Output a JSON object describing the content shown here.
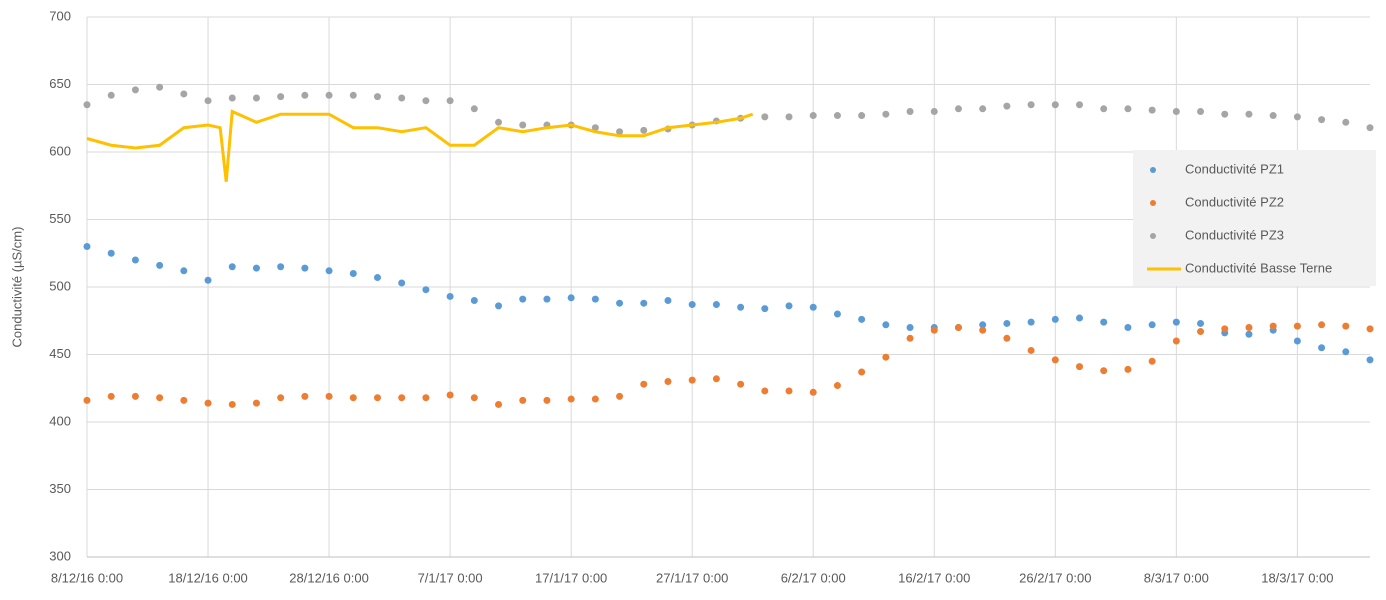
{
  "chart_data": {
    "type": "scatter",
    "y_label": "Conductivité (µS/cm)",
    "xlim": [
      0,
      106
    ],
    "xticks": [
      {
        "value": 0,
        "label": "8/12/16 0:00"
      },
      {
        "value": 10,
        "label": "18/12/16 0:00"
      },
      {
        "value": 20,
        "label": "28/12/16 0:00"
      },
      {
        "value": 30,
        "label": "7/1/17 0:00"
      },
      {
        "value": 40,
        "label": "17/1/17 0:00"
      },
      {
        "value": 50,
        "label": "27/1/17 0:00"
      },
      {
        "value": 60,
        "label": "6/2/17 0:00"
      },
      {
        "value": 70,
        "label": "16/2/17 0:00"
      },
      {
        "value": 80,
        "label": "26/2/17 0:00"
      },
      {
        "value": 90,
        "label": "8/3/17 0:00"
      },
      {
        "value": 100,
        "label": "18/3/17 0:00"
      }
    ],
    "ylim": [
      300,
      700
    ],
    "yticks": [
      300,
      350,
      400,
      450,
      500,
      550,
      600,
      650,
      700
    ],
    "grid": true,
    "legend": "right",
    "series": [
      {
        "name": "Conductivité PZ1",
        "type": "scatter",
        "color": "#5b9bd5",
        "x": [
          0,
          2,
          4,
          6,
          8,
          10,
          12,
          14,
          16,
          18,
          20,
          22,
          24,
          26,
          28,
          30,
          32,
          34,
          36,
          38,
          40,
          42,
          44,
          46,
          48,
          50,
          52,
          54,
          56,
          58,
          60,
          62,
          64,
          66,
          68,
          70,
          72,
          74,
          76,
          78,
          80,
          82,
          84,
          86,
          88,
          90,
          92,
          94,
          96,
          98,
          100,
          102,
          104,
          106
        ],
        "values": [
          530,
          525,
          520,
          516,
          512,
          505,
          515,
          514,
          515,
          514,
          512,
          510,
          507,
          503,
          498,
          493,
          490,
          486,
          491,
          491,
          492,
          491,
          488,
          488,
          490,
          487,
          487,
          485,
          484,
          486,
          485,
          480,
          476,
          472,
          470,
          470,
          470,
          472,
          473,
          474,
          476,
          477,
          474,
          470,
          472,
          474,
          473,
          466,
          465,
          468,
          460,
          455,
          452,
          446
        ]
      },
      {
        "name": "Conductivité PZ2",
        "type": "scatter",
        "color": "#ed7d31",
        "x": [
          0,
          2,
          4,
          6,
          8,
          10,
          12,
          14,
          16,
          18,
          20,
          22,
          24,
          26,
          28,
          30,
          32,
          34,
          36,
          38,
          40,
          42,
          44,
          46,
          48,
          50,
          52,
          54,
          56,
          58,
          60,
          62,
          64,
          66,
          68,
          70,
          72,
          74,
          76,
          78,
          80,
          82,
          84,
          86,
          88,
          90,
          92,
          94,
          96,
          98,
          100,
          102,
          104,
          106
        ],
        "values": [
          416,
          419,
          419,
          418,
          416,
          414,
          413,
          414,
          418,
          419,
          419,
          418,
          418,
          418,
          418,
          420,
          418,
          413,
          416,
          416,
          417,
          417,
          419,
          428,
          430,
          431,
          432,
          428,
          423,
          423,
          422,
          427,
          437,
          448,
          462,
          468,
          470,
          468,
          462,
          453,
          446,
          441,
          438,
          439,
          445,
          460,
          467,
          469,
          470,
          471,
          471,
          472,
          471,
          469
        ]
      },
      {
        "name": "Conductivité PZ3",
        "type": "scatter",
        "color": "#a5a5a5",
        "x": [
          0,
          2,
          4,
          6,
          8,
          10,
          12,
          14,
          16,
          18,
          20,
          22,
          24,
          26,
          28,
          30,
          32,
          34,
          36,
          38,
          40,
          42,
          44,
          46,
          48,
          50,
          52,
          54,
          56,
          58,
          60,
          62,
          64,
          66,
          68,
          70,
          72,
          74,
          76,
          78,
          80,
          82,
          84,
          86,
          88,
          90,
          92,
          94,
          96,
          98,
          100,
          102,
          104,
          106
        ],
        "values": [
          635,
          642,
          646,
          648,
          643,
          638,
          640,
          640,
          641,
          642,
          642,
          642,
          641,
          640,
          638,
          638,
          632,
          622,
          620,
          620,
          620,
          618,
          615,
          616,
          617,
          620,
          623,
          625,
          626,
          626,
          627,
          627,
          627,
          628,
          630,
          630,
          632,
          632,
          634,
          635,
          635,
          635,
          632,
          632,
          631,
          630,
          630,
          628,
          628,
          627,
          626,
          624,
          622,
          618
        ]
      },
      {
        "name": "Conductivité Basse Terne",
        "type": "line",
        "color": "#ffc000",
        "x": [
          0,
          2,
          4,
          6,
          8,
          10,
          11,
          11.5,
          12,
          14,
          16,
          18,
          20,
          22,
          24,
          26,
          28,
          30,
          32,
          34,
          36,
          38,
          40,
          42,
          44,
          46,
          48,
          50,
          52,
          54,
          55
        ],
        "values": [
          610,
          605,
          603,
          605,
          618,
          620,
          618,
          578,
          630,
          622,
          628,
          628,
          628,
          618,
          618,
          615,
          618,
          605,
          605,
          618,
          615,
          618,
          620,
          615,
          612,
          612,
          618,
          620,
          622,
          625,
          628
        ]
      }
    ]
  }
}
